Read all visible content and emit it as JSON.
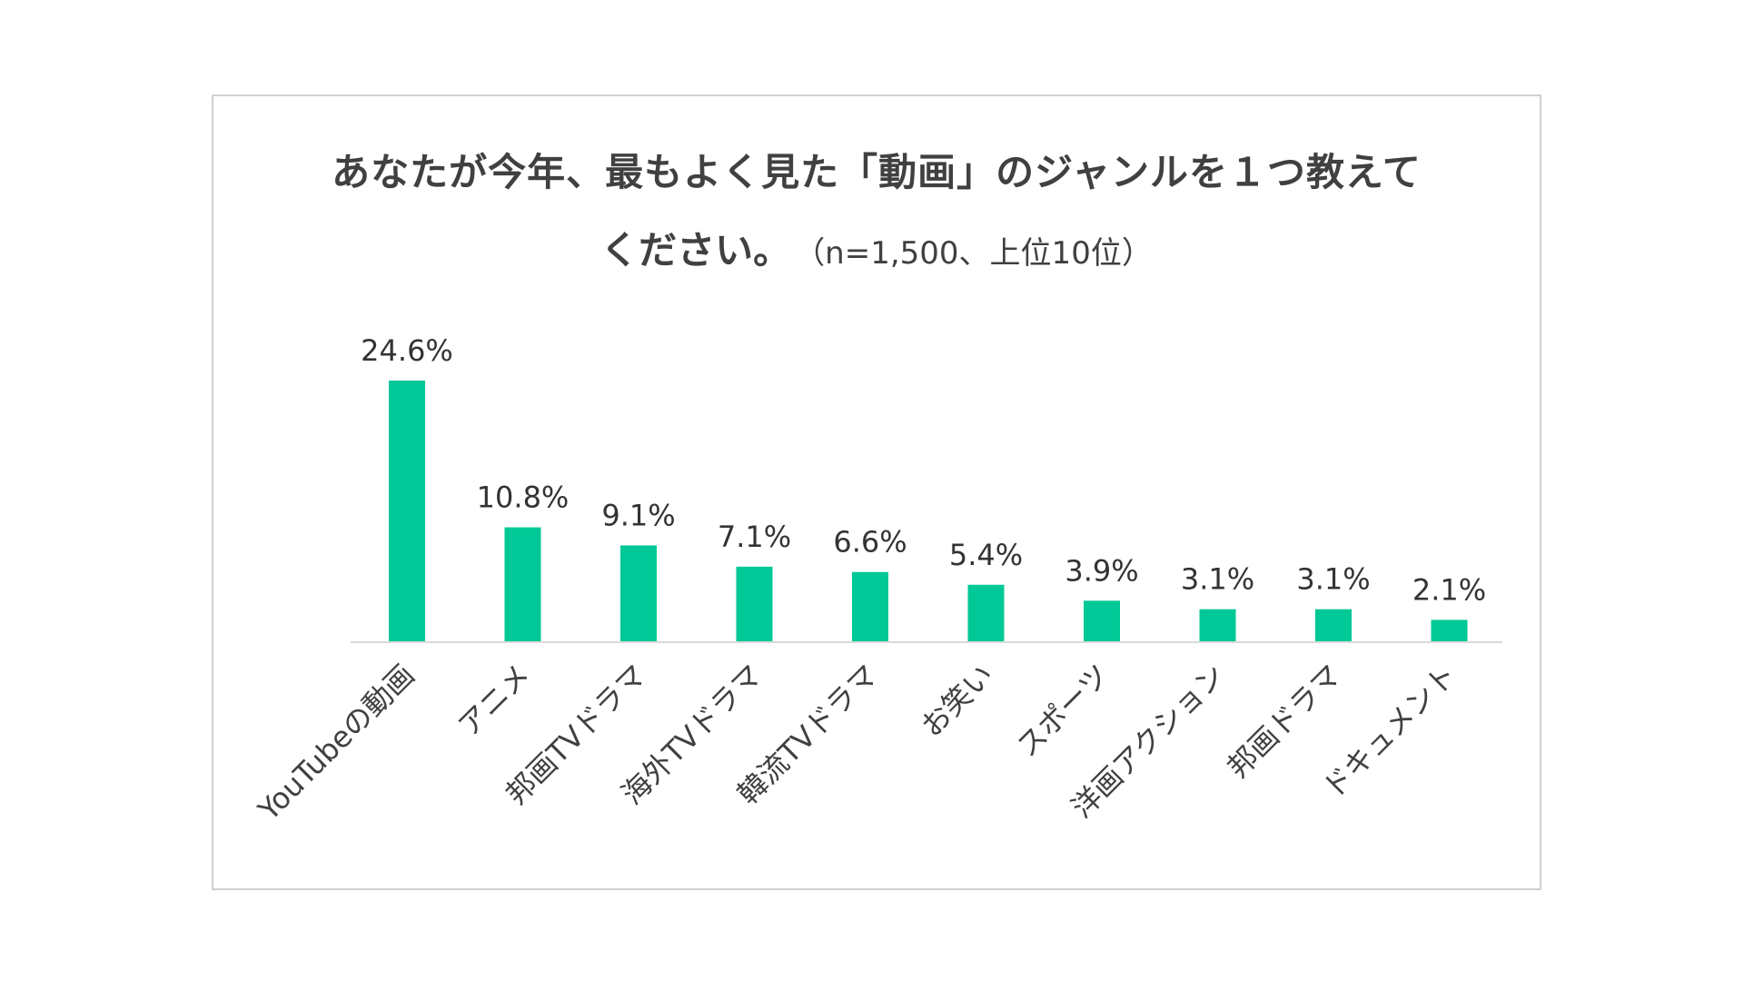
{
  "chart_data": {
    "type": "bar",
    "title_line1": "あなたが今年、最もよく見た「動画」のジャンルを１つ教えて",
    "title_line2_main": "ください。",
    "title_line2_sub": "（n=1,500、上位10位）",
    "categories": [
      "YouTubeの動画",
      "アニメ",
      "邦画TVドラマ",
      "海外TVドラマ",
      "韓流TVドラマ",
      "お笑い",
      "スポーツ",
      "洋画アクション",
      "邦画ドラマ",
      "ドキュメント"
    ],
    "values": [
      24.6,
      10.8,
      9.1,
      7.1,
      6.6,
      5.4,
      3.9,
      3.1,
      3.1,
      2.1
    ],
    "value_labels": [
      "24.6%",
      "10.8%",
      "9.1%",
      "7.1%",
      "6.6%",
      "5.4%",
      "3.9%",
      "3.1%",
      "3.1%",
      "2.1%"
    ],
    "ylim": [
      0,
      24.6
    ],
    "grid": false,
    "legend": "none",
    "bar_color": "#00c896",
    "axis_color": "#d9d9d9"
  }
}
